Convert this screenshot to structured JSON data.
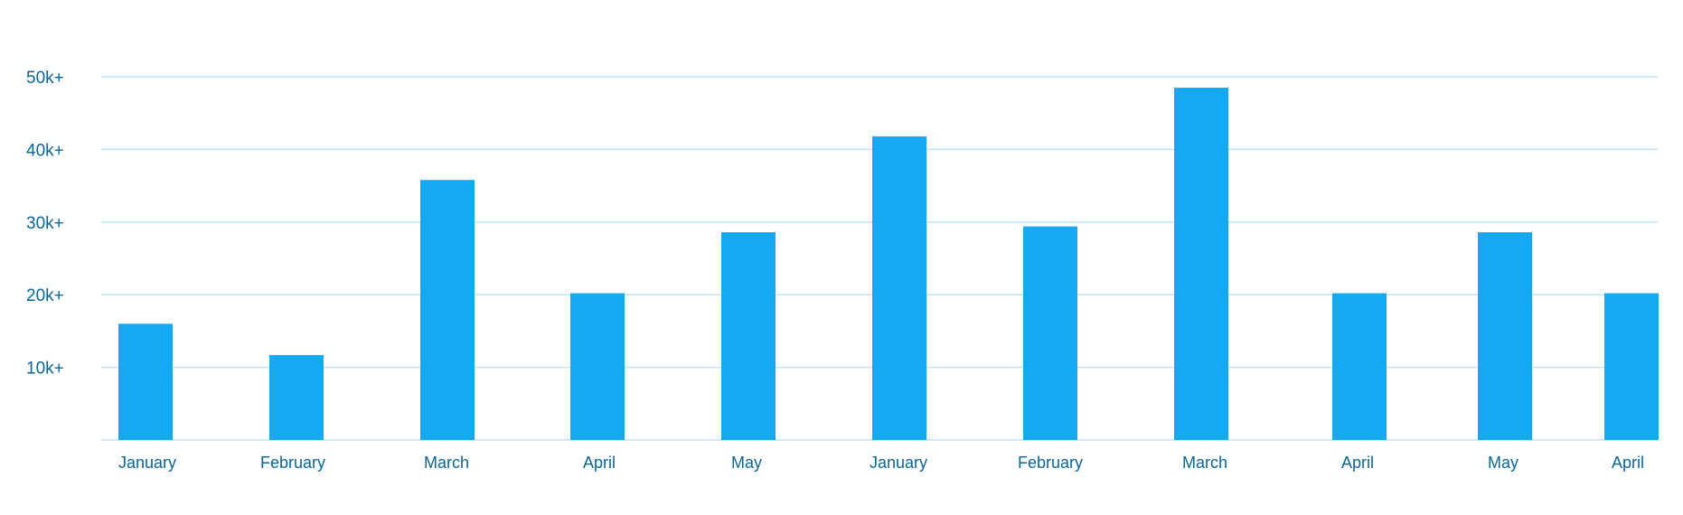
{
  "chart_data": {
    "type": "bar",
    "title": "",
    "xlabel": "",
    "ylabel": "",
    "categories": [
      "January",
      "February",
      "March",
      "April",
      "May",
      "January",
      "February",
      "March",
      "April",
      "May",
      "April"
    ],
    "values": [
      16000,
      11700,
      35800,
      20200,
      28600,
      41800,
      29400,
      48500,
      20200,
      28600,
      20200
    ],
    "ylim": [
      0,
      50000
    ],
    "yticks": [
      {
        "value": 10000,
        "label": "10k+"
      },
      {
        "value": 20000,
        "label": "20k+"
      },
      {
        "value": 30000,
        "label": "30k+"
      },
      {
        "value": 40000,
        "label": "40k+"
      },
      {
        "value": 50000,
        "label": "50k+"
      }
    ],
    "grid": true,
    "legend": "none"
  },
  "colors": {
    "bar": "#14a9f0",
    "grid": "#bfe6f8",
    "text": "#0d6594"
  }
}
